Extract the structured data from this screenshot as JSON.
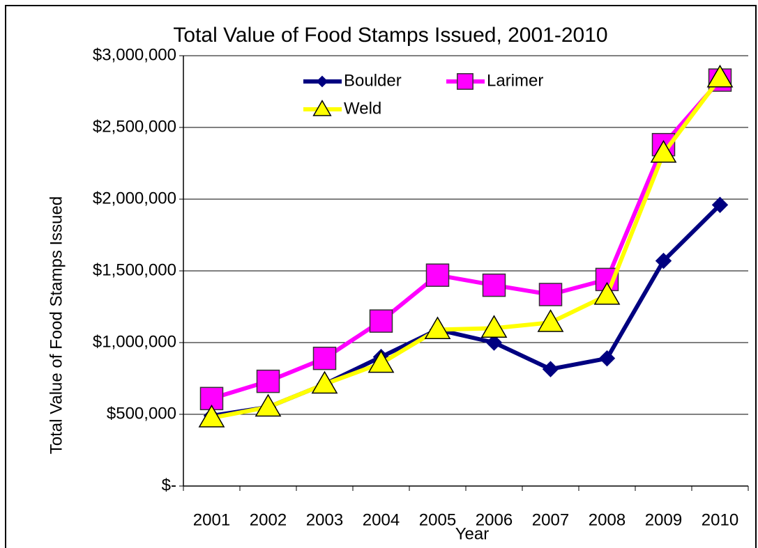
{
  "chart_data": {
    "type": "line",
    "title": "Total Value of Food Stamps Issued, 2001-2010",
    "y_label": "Total Value of Food Stamps Issued",
    "x_label": "Year",
    "categories": [
      "2001",
      "2002",
      "2003",
      "2004",
      "2005",
      "2006",
      "2007",
      "2008",
      "2009",
      "2010"
    ],
    "series": [
      {
        "name": "Boulder",
        "color": "#000080",
        "marker": "diamond",
        "values": [
          490000,
          550000,
          710000,
          900000,
          1090000,
          1000000,
          815000,
          890000,
          1570000,
          1960000
        ]
      },
      {
        "name": "Larimer",
        "color": "#ff00ff",
        "marker": "square",
        "values": [
          610000,
          730000,
          890000,
          1150000,
          1470000,
          1400000,
          1335000,
          1440000,
          2380000,
          2830000
        ]
      },
      {
        "name": "Weld",
        "color": "#ffff00",
        "marker": "triangle",
        "values": [
          475000,
          550000,
          710000,
          855000,
          1090000,
          1100000,
          1140000,
          1330000,
          2320000,
          2845000
        ]
      }
    ],
    "ylim": [
      0,
      3000000
    ],
    "yticks": [
      {
        "value": 0,
        "label": "$-"
      },
      {
        "value": 500000,
        "label": "$500,000"
      },
      {
        "value": 1000000,
        "label": "$1,000,000"
      },
      {
        "value": 1500000,
        "label": "$1,500,000"
      },
      {
        "value": 2000000,
        "label": "$2,000,000"
      },
      {
        "value": 2500000,
        "label": "$2,500,000"
      },
      {
        "value": 3000000,
        "label": "$3,000,000"
      }
    ],
    "grid": true,
    "legend": "top"
  }
}
